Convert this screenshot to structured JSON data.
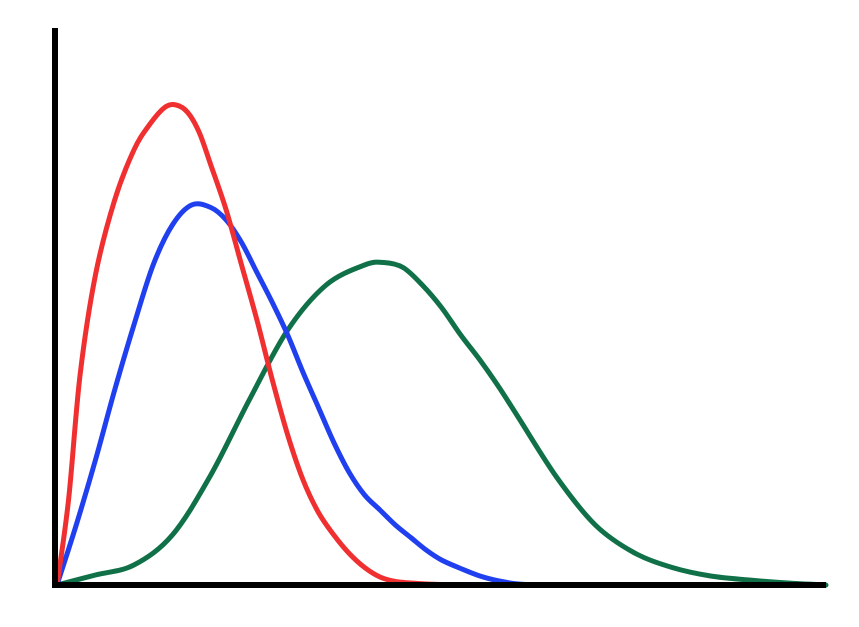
{
  "chart_data": {
    "type": "line",
    "title": "",
    "xlabel": "",
    "ylabel": "",
    "grid": false,
    "legend": "none",
    "xlim": [
      0,
      10
    ],
    "ylim": [
      0,
      1
    ],
    "series": [
      {
        "color": "#f03030",
        "x": [
          0,
          0.15,
          0.3,
          0.5,
          0.75,
          1.0,
          1.2,
          1.4,
          1.55,
          1.7,
          1.85,
          2.0,
          2.2,
          2.4,
          2.6,
          2.8,
          3.0,
          3.2,
          3.4,
          3.6,
          3.8,
          4.0,
          4.2,
          4.4,
          4.6,
          4.8,
          5.0,
          5.3,
          5.6
        ],
        "y": [
          0,
          0.17,
          0.42,
          0.62,
          0.77,
          0.87,
          0.92,
          0.955,
          0.96,
          0.945,
          0.905,
          0.84,
          0.75,
          0.64,
          0.53,
          0.41,
          0.3,
          0.21,
          0.145,
          0.1,
          0.063,
          0.035,
          0.016,
          0.007,
          0.004,
          0.002,
          0.001,
          0.0003,
          0
        ]
      },
      {
        "color": "#2040f0",
        "x": [
          0,
          0.25,
          0.5,
          0.75,
          1.0,
          1.25,
          1.5,
          1.75,
          2.0,
          2.2,
          2.4,
          2.6,
          2.8,
          3.0,
          3.2,
          3.4,
          3.6,
          3.8,
          4.0,
          4.2,
          4.4,
          4.6,
          4.8,
          5.0,
          5.25,
          5.5,
          5.75,
          6.0,
          6.3
        ],
        "y": [
          0,
          0.12,
          0.25,
          0.39,
          0.52,
          0.64,
          0.72,
          0.76,
          0.755,
          0.73,
          0.685,
          0.625,
          0.565,
          0.5,
          0.425,
          0.355,
          0.285,
          0.225,
          0.18,
          0.15,
          0.12,
          0.095,
          0.07,
          0.05,
          0.033,
          0.018,
          0.008,
          0.002,
          0
        ]
      },
      {
        "color": "#107048",
        "x": [
          0,
          0.5,
          1.0,
          1.5,
          2.0,
          2.5,
          3.0,
          3.5,
          4.0,
          4.25,
          4.5,
          4.75,
          5.0,
          5.25,
          5.5,
          5.75,
          6.0,
          6.5,
          7.0,
          7.5,
          8.0,
          8.5,
          9.0,
          9.5,
          10.0
        ],
        "y": [
          0,
          0.02,
          0.04,
          0.1,
          0.22,
          0.37,
          0.51,
          0.6,
          0.64,
          0.645,
          0.635,
          0.6,
          0.555,
          0.5,
          0.45,
          0.395,
          0.335,
          0.215,
          0.12,
          0.065,
          0.035,
          0.018,
          0.01,
          0.004,
          0
        ]
      }
    ]
  }
}
